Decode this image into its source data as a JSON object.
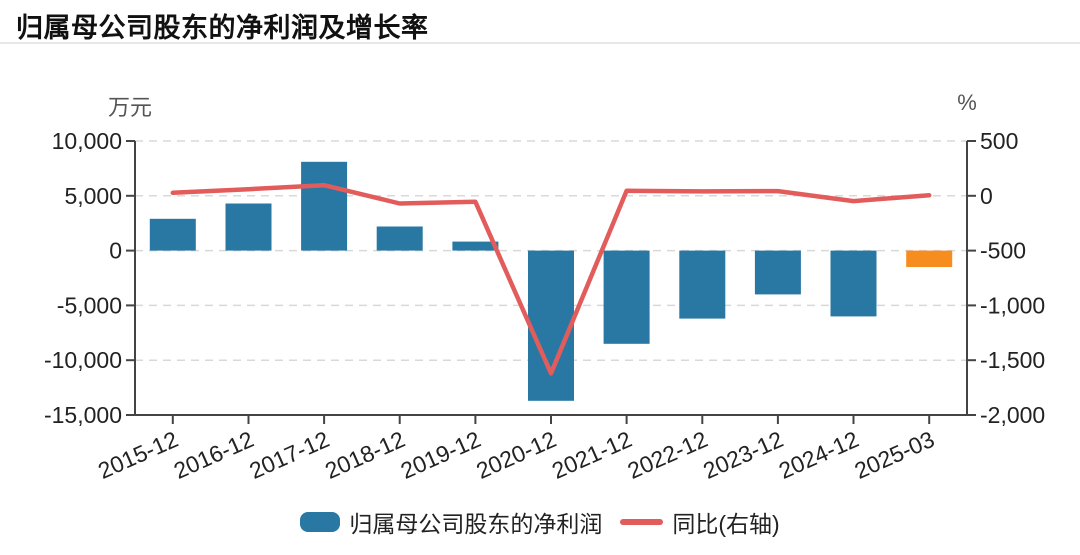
{
  "chart_data": {
    "type": "bar+line",
    "title": "归属母公司股东的净利润及增长率",
    "categories": [
      "2015-12",
      "2016-12",
      "2017-12",
      "2018-12",
      "2019-12",
      "2020-12",
      "2021-12",
      "2022-12",
      "2023-12",
      "2024-12",
      "2025-03"
    ],
    "series": [
      {
        "name": "归属母公司股东的净利润",
        "type": "bar",
        "axis": "left",
        "unit": "万元",
        "values": [
          2900,
          4300,
          8100,
          2200,
          820,
          -13700,
          -8500,
          -6200,
          -4000,
          -6000,
          -1500
        ],
        "color": "#2878a3",
        "point_colors": {
          "10": "#f78c1f"
        }
      },
      {
        "name": "同比(右轴)",
        "type": "line",
        "axis": "right",
        "unit": "%",
        "values": [
          27,
          60,
          97,
          -70,
          -55,
          -1620,
          46,
          40,
          43,
          -48,
          5
        ],
        "color": "#e25c5c"
      }
    ],
    "left_axis": {
      "label": "万元",
      "min": -15000,
      "max": 10000,
      "ticks": [
        "10,000",
        "5,000",
        "0",
        "-5,000",
        "-10,000",
        "-15,000"
      ]
    },
    "right_axis": {
      "label": "%",
      "min": -2000,
      "max": 500,
      "ticks": [
        "500",
        "0",
        "-500",
        "-1,000",
        "-1,500",
        "-2,000"
      ]
    },
    "grid": "dashed-horizontal",
    "legend_position": "bottom"
  },
  "colors": {
    "bar": "#2878a3",
    "bar_highlight": "#f78c1f",
    "line": "#e25c5c",
    "axis": "#444444",
    "tick_text": "#222222",
    "grid": "#d9d9d9",
    "unit_text": "#555555",
    "divider": "#e7e7e7",
    "title": "#111111",
    "background": "#ffffff"
  }
}
